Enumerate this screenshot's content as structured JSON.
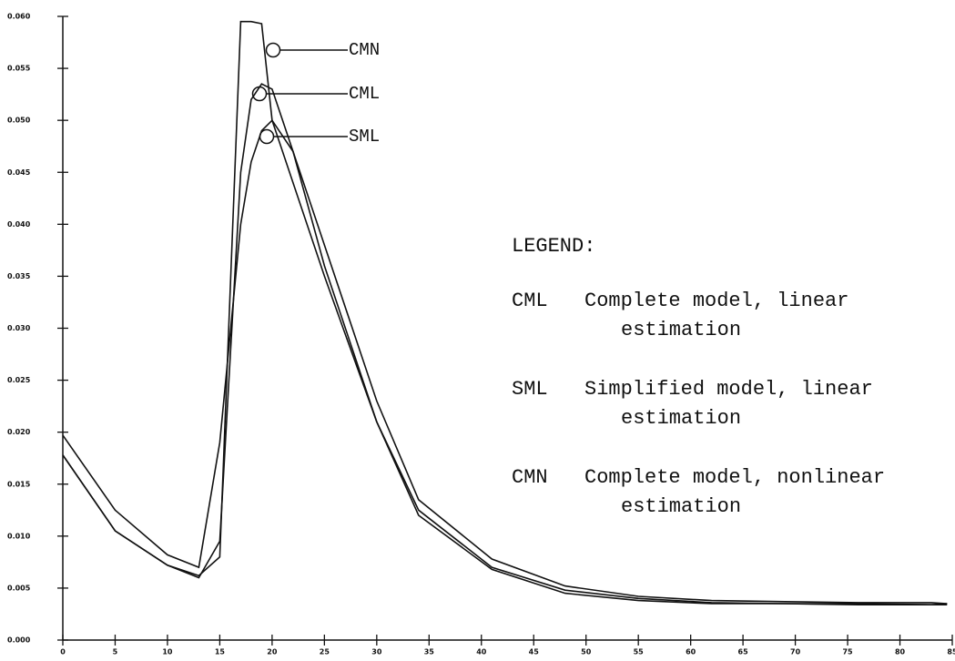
{
  "chart_data": {
    "type": "line",
    "x": [
      0,
      5,
      10,
      13,
      15,
      17,
      18,
      19,
      20,
      22,
      25,
      30,
      34,
      41,
      48,
      55,
      62,
      69,
      76,
      83,
      84.5
    ],
    "series": [
      {
        "name": "CML",
        "color": "#111111",
        "values": [
          0.0178,
          0.0105,
          0.0072,
          0.006,
          0.0095,
          0.045,
          0.052,
          0.0535,
          0.053,
          0.047,
          0.036,
          0.021,
          0.0125,
          0.007,
          0.0048,
          0.004,
          0.0036,
          0.0035,
          0.0035,
          0.0034,
          0.0035
        ]
      },
      {
        "name": "SML",
        "color": "#111111",
        "values": [
          0.0197,
          0.0125,
          0.0082,
          0.007,
          0.019,
          0.04,
          0.046,
          0.049,
          0.05,
          0.047,
          0.038,
          0.023,
          0.0135,
          0.0078,
          0.0052,
          0.0042,
          0.0038,
          0.0037,
          0.0036,
          0.0036,
          0.0035
        ]
      },
      {
        "name": "CMN",
        "color": "#111111",
        "values": [
          0.0178,
          0.0105,
          0.0072,
          0.0062,
          0.008,
          0.0595,
          0.0595,
          0.0593,
          0.05,
          0.044,
          0.035,
          0.021,
          0.012,
          0.0068,
          0.0045,
          0.0038,
          0.0035,
          0.0035,
          0.0034,
          0.0034,
          0.0034
        ]
      }
    ],
    "xlim": [
      0,
      85
    ],
    "xticks": [
      0,
      5,
      10,
      15,
      20,
      25,
      30,
      35,
      40,
      45,
      50,
      55,
      60,
      65,
      70,
      75,
      80,
      85
    ],
    "ylim": [
      0,
      0.06
    ],
    "yticks": [
      {
        "value": 0,
        "label": "0.000"
      },
      {
        "value": 0.005,
        "label": "0.005"
      },
      {
        "value": 0.01,
        "label": "0.010"
      },
      {
        "value": 0.015,
        "label": "0.015"
      },
      {
        "value": 0.02,
        "label": "0.020"
      },
      {
        "value": 0.025,
        "label": "0.025"
      },
      {
        "value": 0.03,
        "label": "0.030"
      },
      {
        "value": 0.035,
        "label": "0.035"
      },
      {
        "value": 0.04,
        "label": "0.040"
      },
      {
        "value": 0.045,
        "label": "0.045"
      },
      {
        "value": 0.05,
        "label": "0.050"
      },
      {
        "value": 0.055,
        "label": "0.055"
      },
      {
        "value": 0.06,
        "label": "0.060"
      }
    ],
    "grid": false,
    "legend": {
      "title": "LEGEND:",
      "entries": [
        [
          "Complete model, linear",
          "estimation"
        ],
        [
          "Simplified model, linear",
          "estimation"
        ],
        [
          "Complete model, nonlinear",
          "estimation"
        ]
      ]
    }
  }
}
